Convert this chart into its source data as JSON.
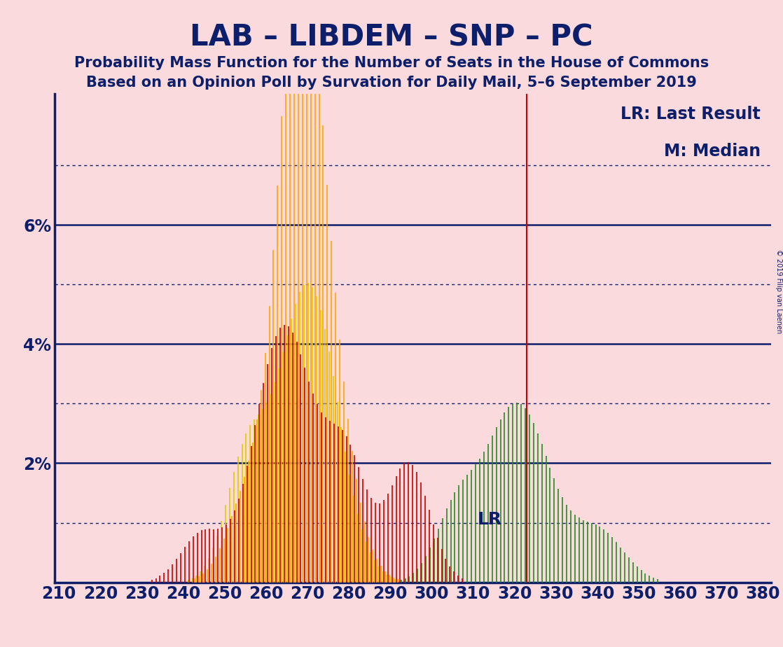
{
  "title": "LAB – LIBDEM – SNP – PC",
  "subtitle1": "Probability Mass Function for the Number of Seats in the House of Commons",
  "subtitle2": "Based on an Opinion Poll by Survation for Daily Mail, 5–6 September 2019",
  "copyright": "© 2019 Filip van Laenen",
  "legend_lr": "LR: Last Result",
  "legend_m": "M: Median",
  "lr_label": "LR",
  "background_color": "#FADADD",
  "title_color": "#0D1F6B",
  "bar_color_LAB": "#CC0000",
  "bar_color_LIBDEM": "#FFA500",
  "bar_color_SNP": "#DDCC00",
  "bar_color_PC": "#228B22",
  "x_min": 209,
  "x_max": 382,
  "y_max": 0.082,
  "y_ticks": [
    0.02,
    0.04,
    0.06
  ],
  "y_tick_labels": [
    "2%",
    "4%",
    "6%"
  ],
  "dotted_lines": [
    0.01,
    0.03,
    0.05,
    0.07
  ],
  "last_result": 323,
  "seat_range": [
    210,
    380
  ]
}
